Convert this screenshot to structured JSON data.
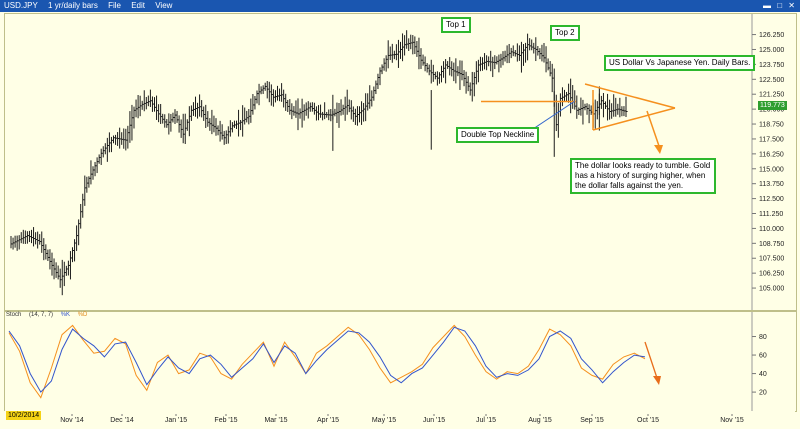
{
  "window": {
    "symbol": "USD.JPY",
    "period_menu": "1 yr/daily bars",
    "menu_file": "File",
    "menu_edit": "Edit",
    "menu_view": "View"
  },
  "last_price": "119.773",
  "start_date_tag": "10/2/2014",
  "indicator": {
    "name": "Stoch",
    "params": "(14, 7, 7)",
    "k_label": "%K",
    "d_label": "%D"
  },
  "annotations": {
    "top1": "Top 1",
    "top2": "Top 2",
    "title_box": "US Dollar Vs Japanese Yen. Daily Bars.",
    "neckline": "Double Top Neckline",
    "note": "The dollar looks ready to tumble. Gold has a history of surging higher, when the dollar falls against the yen."
  },
  "colors": {
    "bars": "#1a1a1a",
    "pattern_lines": "#f5901e",
    "annotation_border": "#2db82d",
    "stoch_k": "#3355cc",
    "stoch_d": "#f5901e",
    "price_tag": "#2f9e2f",
    "date_tag": "#f5d315"
  },
  "chart_data": [
    {
      "type": "bar",
      "title": "",
      "series_name": "",
      "x_axis": {
        "tick_labels": [
          "Nov '14",
          "Dec '14",
          "Jan '15",
          "Feb '15",
          "Mar '15",
          "Apr '15",
          "May '15",
          "Jun '15",
          "Jul '15",
          "Aug '15",
          "Sep '15",
          "Oct '15",
          "Nov '15"
        ]
      },
      "y_axis": {
        "tick_labels": [
          "126.250",
          "125.000",
          "123.750",
          "122.500",
          "121.250",
          "120.000",
          "118.750",
          "117.500",
          "116.250",
          "115.000",
          "113.750",
          "112.500",
          "111.250",
          "110.000",
          "108.750",
          "107.500",
          "106.250",
          "105.000"
        ],
        "ylim": [
          104.0,
          126.8
        ],
        "grid": false
      },
      "x": [
        "Oct '14",
        "Oct '14",
        "Nov '14",
        "Nov '14",
        "Dec '14",
        "Dec '14",
        "Jan '15",
        "Jan '15",
        "Feb '15",
        "Feb '15",
        "Mar '15",
        "Mar '15",
        "Apr '15",
        "Apr '15",
        "May '15",
        "May '15",
        "Jun '15",
        "Jun '15",
        "Jul '15",
        "Jul '15",
        "Aug '15",
        "Aug '15",
        "Aug '15",
        "Sep '15",
        "Sep '15"
      ],
      "values": [
        108.7,
        107.9,
        114.2,
        117.5,
        119.6,
        118.9,
        120.3,
        117.8,
        118.3,
        119.4,
        120.5,
        120.1,
        119.8,
        119.2,
        119.6,
        121.9,
        124.4,
        123.7,
        123.3,
        121.4,
        123.9,
        124.3,
        123.2,
        119.9,
        119.8
      ],
      "close_path": [
        [
          0,
          108.7
        ],
        [
          8,
          109.4
        ],
        [
          14,
          108.9
        ],
        [
          20,
          106.9
        ],
        [
          24,
          105.7
        ],
        [
          28,
          106.9
        ],
        [
          32,
          109.4
        ],
        [
          36,
          113.4
        ],
        [
          38,
          114.2
        ],
        [
          44,
          116.3
        ],
        [
          50,
          117.6
        ],
        [
          56,
          117.4
        ],
        [
          60,
          119.9
        ],
        [
          64,
          120.4
        ],
        [
          68,
          120.7
        ],
        [
          72,
          119.6
        ],
        [
          76,
          118.7
        ],
        [
          80,
          119.5
        ],
        [
          84,
          117.9
        ],
        [
          88,
          119.9
        ],
        [
          92,
          120.2
        ],
        [
          96,
          118.9
        ],
        [
          100,
          118.4
        ],
        [
          104,
          117.6
        ],
        [
          108,
          118.6
        ],
        [
          112,
          118.9
        ],
        [
          116,
          119.4
        ],
        [
          120,
          121.3
        ],
        [
          124,
          121.9
        ],
        [
          128,
          121.0
        ],
        [
          132,
          121.2
        ],
        [
          136,
          119.9
        ],
        [
          140,
          119.6
        ],
        [
          146,
          120.2
        ],
        [
          150,
          119.6
        ],
        [
          156,
          119.5
        ],
        [
          160,
          119.8
        ],
        [
          164,
          120.3
        ],
        [
          168,
          119.4
        ],
        [
          172,
          120.0
        ],
        [
          176,
          121.0
        ],
        [
          180,
          123.2
        ],
        [
          184,
          124.5
        ],
        [
          188,
          124.6
        ],
        [
          192,
          125.4
        ],
        [
          196,
          125.6
        ],
        [
          200,
          124.1
        ],
        [
          204,
          123.2
        ],
        [
          208,
          122.6
        ],
        [
          212,
          123.7
        ],
        [
          216,
          123.2
        ],
        [
          220,
          122.9
        ],
        [
          224,
          121.6
        ],
        [
          228,
          123.7
        ],
        [
          232,
          124.0
        ],
        [
          236,
          123.9
        ],
        [
          240,
          124.3
        ],
        [
          244,
          124.8
        ],
        [
          248,
          124.5
        ],
        [
          252,
          125.4
        ],
        [
          256,
          125.0
        ],
        [
          260,
          124.3
        ],
        [
          264,
          122.6
        ],
        [
          266,
          118.7
        ],
        [
          268,
          120.9
        ],
        [
          272,
          121.3
        ],
        [
          276,
          119.9
        ],
        [
          280,
          120.2
        ],
        [
          284,
          119.6
        ],
        [
          288,
          120.7
        ],
        [
          292,
          119.8
        ],
        [
          296,
          120.0
        ],
        [
          300,
          119.8
        ]
      ]
    },
    {
      "type": "line",
      "title": "Stoch (14, 7, 7)",
      "series": [
        {
          "name": "%K",
          "values": [
            86,
            70,
            40,
            20,
            32,
            66,
            88,
            78,
            70,
            58,
            72,
            74,
            52,
            28,
            44,
            58,
            46,
            40,
            56,
            60,
            50,
            36,
            46,
            56,
            72,
            52,
            70,
            62,
            40,
            54,
            66,
            76,
            86,
            84,
            74,
            58,
            38,
            30,
            40,
            46,
            60,
            74,
            90,
            86,
            70,
            48,
            36,
            40,
            38,
            44,
            56,
            80,
            86,
            78,
            56,
            44,
            30,
            42,
            52,
            60,
            58
          ]
        },
        {
          "name": "%D",
          "values": [
            84,
            64,
            30,
            14,
            46,
            82,
            92,
            76,
            62,
            64,
            78,
            72,
            38,
            22,
            52,
            60,
            40,
            44,
            62,
            58,
            40,
            34,
            50,
            62,
            74,
            48,
            74,
            58,
            40,
            62,
            70,
            80,
            90,
            82,
            66,
            46,
            30,
            36,
            42,
            50,
            68,
            80,
            92,
            80,
            60,
            42,
            34,
            42,
            40,
            48,
            66,
            88,
            82,
            70,
            46,
            38,
            34,
            50,
            58,
            62,
            56
          ]
        }
      ],
      "y_axis": {
        "tick_labels": [
          "80",
          "60",
          "40",
          "20"
        ],
        "ylim": [
          5,
          100
        ]
      },
      "x_axis": {
        "tick_labels": [
          "Nov '14",
          "Dec '14",
          "Jan '15",
          "Feb '15",
          "Mar '15",
          "Apr '15",
          "May '15",
          "Jun '15",
          "Jul '15",
          "Aug '15",
          "Sep '15",
          "Oct '15",
          "Nov '15"
        ]
      }
    }
  ]
}
